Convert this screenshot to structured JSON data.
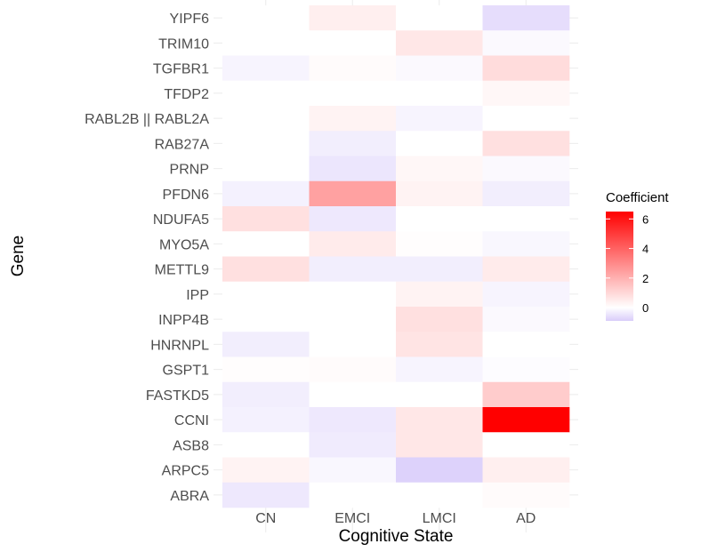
{
  "chart_data": {
    "type": "heatmap",
    "xlabel": "Cognitive State",
    "ylabel": "Gene",
    "categories_x": [
      "CN",
      "EMCI",
      "LMCI",
      "AD"
    ],
    "categories_y": [
      "YIPF6",
      "TRIM10",
      "TGFBR1",
      "TFDP2",
      "RABL2B || RABL2A",
      "RAB27A",
      "PRNP",
      "PFDN6",
      "NDUFA5",
      "MYO5A",
      "METTL9",
      "IPP",
      "INPP4B",
      "HNRNPL",
      "GSPT1",
      "FASTKD5",
      "CCNI",
      "ASB8",
      "ARPC5",
      "ABRA"
    ],
    "values": [
      [
        0.0,
        0.4,
        0.0,
        -0.6
      ],
      [
        0.0,
        0.0,
        0.6,
        -0.1
      ],
      [
        -0.2,
        0.1,
        -0.1,
        0.9
      ],
      [
        0.0,
        0.0,
        0.0,
        0.2
      ],
      [
        0.0,
        0.3,
        -0.2,
        0.0
      ],
      [
        0.0,
        -0.3,
        0.0,
        0.8
      ],
      [
        0.0,
        -0.45,
        0.2,
        -0.1
      ],
      [
        -0.25,
        2.4,
        0.3,
        -0.3
      ],
      [
        0.8,
        -0.4,
        0.0,
        0.0
      ],
      [
        0.0,
        0.5,
        0.05,
        -0.15
      ],
      [
        0.8,
        -0.3,
        -0.3,
        0.5
      ],
      [
        0.0,
        0.0,
        0.3,
        -0.2
      ],
      [
        0.0,
        0.0,
        0.8,
        -0.1
      ],
      [
        -0.3,
        0.0,
        0.7,
        0.0
      ],
      [
        0.05,
        0.1,
        -0.2,
        -0.05
      ],
      [
        -0.3,
        0.0,
        0.0,
        1.3
      ],
      [
        -0.25,
        -0.4,
        0.6,
        6.5
      ],
      [
        0.0,
        -0.35,
        0.6,
        0.0
      ],
      [
        0.3,
        -0.15,
        -0.8,
        0.4
      ],
      [
        -0.4,
        0.0,
        0.0,
        0.1
      ]
    ],
    "legend": {
      "title": "Coefficient",
      "ticks": [
        0,
        2,
        4,
        6
      ],
      "min": -0.9,
      "max": 6.5,
      "low_color": "#d9ccfa",
      "mid_color": "#ffffff",
      "high_color": "#ff0000",
      "placement": "right"
    },
    "grid": true
  }
}
